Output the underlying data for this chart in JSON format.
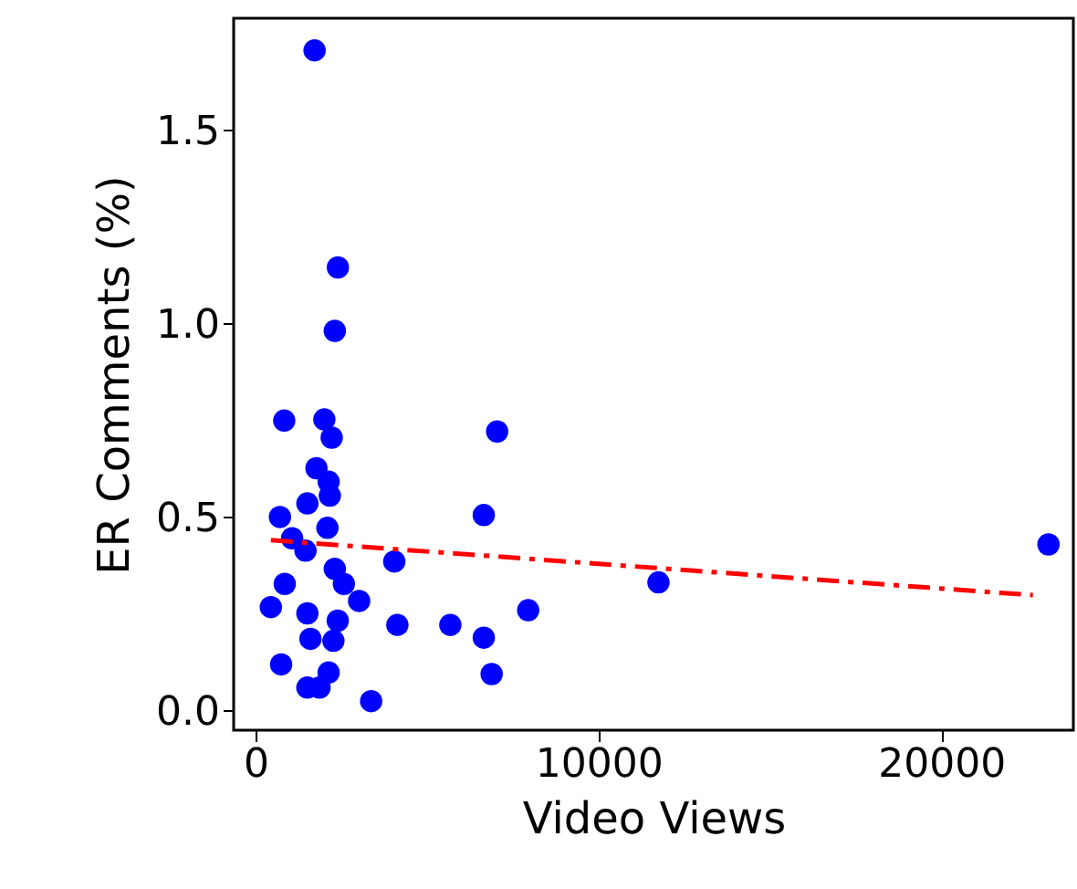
{
  "chart_data": {
    "type": "scatter",
    "xlabel": "Video Views",
    "ylabel": "ER Comments (%)",
    "xlim": [
      -640,
      23850
    ],
    "ylim": [
      -0.05,
      1.79
    ],
    "xticks": [
      0,
      {
        "value": 10000,
        "label": "10000"
      },
      {
        "value": 20000,
        "label": "20000"
      }
    ],
    "yticks": [
      {
        "value": 0,
        "label": "0.0"
      },
      0.5,
      {
        "value": 1,
        "label": "1.0"
      },
      1.5
    ],
    "grid": false,
    "marker": "circle",
    "series": [
      {
        "color": "#0000ff",
        "x": [
          1720,
          2400,
          2310,
          835,
          2005,
          2220,
          7045,
          1775,
          2130,
          1510,
          2165,
          710,
          2095,
          6655,
          1065,
          1455,
          4045,
          2310,
          2575,
          850,
          3020,
          445,
          1510,
          2395,
          4135,
          5680,
          7950,
          1600,
          2270,
          6655,
          745,
          6885,
          2130,
          1510,
          1865,
          3370,
          11750,
          23125
        ],
        "values": [
          1.707,
          1.146,
          0.982,
          0.75,
          0.753,
          0.706,
          0.722,
          0.627,
          0.592,
          0.536,
          0.556,
          0.501,
          0.473,
          0.506,
          0.446,
          0.414,
          0.386,
          0.367,
          0.328,
          0.328,
          0.284,
          0.268,
          0.252,
          0.233,
          0.222,
          0.222,
          0.26,
          0.186,
          0.181,
          0.189,
          0.12,
          0.095,
          0.099,
          0.06,
          0.06,
          0.025,
          0.332,
          0.43
        ]
      },
      {
        "type": "line",
        "color": "#ff0000",
        "line_style": "dashdot",
        "marker": "none",
        "x": [
          445,
          22670
        ],
        "values": [
          0.441,
          0.299
        ]
      }
    ]
  }
}
